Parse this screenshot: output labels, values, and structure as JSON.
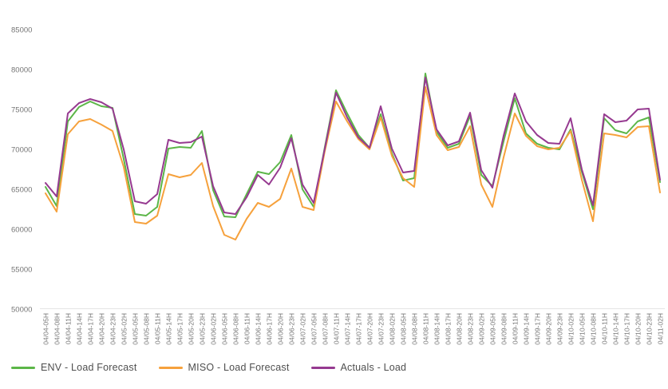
{
  "chart_data": {
    "type": "line",
    "title": "",
    "xlabel": "",
    "ylabel": "",
    "ylim": [
      50000,
      85000
    ],
    "y_ticks": [
      85000,
      80000,
      75000,
      70000,
      65000,
      60000,
      55000,
      50000
    ],
    "grid": "none",
    "legend_position": "bottom-left",
    "axis_text_color": "#757575",
    "axis_line_color": "#e4e4e4",
    "categories": [
      "04/04-05H",
      "04/04-08H",
      "04/04-11H",
      "04/04-14H",
      "04/04-17H",
      "04/04-20H",
      "04/04-23H",
      "04/05-02H",
      "04/05-05H",
      "04/05-08H",
      "04/05-11H",
      "04/05-14H",
      "04/05-17H",
      "04/05-20H",
      "04/05-23H",
      "04/06-02H",
      "04/06-05H",
      "04/06-08H",
      "04/06-11H",
      "04/06-14H",
      "04/06-17H",
      "04/06-20H",
      "04/06-23H",
      "04/07-02H",
      "04/07-05H",
      "04/07-08H",
      "04/07-11H",
      "04/07-14H",
      "04/07-17H",
      "04/07-20H",
      "04/07-23H",
      "04/08-02H",
      "04/08-05H",
      "04/08-08H",
      "04/08-11H",
      "04/08-14H",
      "04/08-17H",
      "04/08-20H",
      "04/08-23H",
      "04/09-02H",
      "04/09-05H",
      "04/09-08H",
      "04/09-11H",
      "04/09-14H",
      "04/09-17H",
      "04/09-20H",
      "04/09-23H",
      "04/10-02H",
      "04/10-05H",
      "04/10-08H",
      "04/10-11H",
      "04/10-14H",
      "04/10-17H",
      "04/10-20H",
      "04/10-23H",
      "04/11-02H"
    ],
    "series": [
      {
        "name": "ENV - Load Forecast",
        "color": "#5cb648",
        "values": [
          65300,
          62900,
          73500,
          75300,
          76000,
          75400,
          75200,
          68800,
          61900,
          61700,
          62800,
          70100,
          70300,
          70200,
          72300,
          64900,
          61600,
          61500,
          64400,
          67200,
          66900,
          68400,
          71800,
          65000,
          62800,
          70300,
          77400,
          74500,
          71800,
          70200,
          74400,
          69500,
          66100,
          66400,
          79500,
          72200,
          70200,
          70700,
          74200,
          66800,
          65400,
          71000,
          76400,
          72000,
          70700,
          70200,
          70000,
          72500,
          67200,
          62500,
          73900,
          72400,
          72000,
          73500,
          74000,
          65900
        ]
      },
      {
        "name": "MISO - Load Forecast",
        "color": "#f6a13c",
        "values": [
          64500,
          62200,
          71900,
          73500,
          73800,
          73100,
          72300,
          67800,
          60900,
          60700,
          61700,
          66900,
          66500,
          66800,
          68300,
          62900,
          59300,
          58700,
          61300,
          63300,
          62800,
          63800,
          67600,
          62800,
          62400,
          69800,
          76000,
          73500,
          71300,
          70000,
          74000,
          69200,
          66400,
          65300,
          77800,
          71800,
          69900,
          70300,
          72900,
          65600,
          62800,
          69000,
          74500,
          71700,
          70400,
          70000,
          70200,
          72300,
          66200,
          61000,
          72000,
          71800,
          71500,
          72800,
          72900,
          64600
        ]
      },
      {
        "name": "Actuals - Load",
        "color": "#963a90",
        "values": [
          65800,
          64100,
          74500,
          75800,
          76300,
          75900,
          75100,
          70000,
          63500,
          63200,
          64400,
          71200,
          70800,
          70900,
          71600,
          65400,
          62100,
          61900,
          64000,
          66800,
          65600,
          67700,
          71400,
          65600,
          63300,
          70100,
          77100,
          74000,
          71500,
          70200,
          75400,
          70100,
          67100,
          67300,
          79000,
          72500,
          70500,
          71000,
          74600,
          67400,
          65200,
          71700,
          77000,
          73500,
          71800,
          70800,
          70700,
          73900,
          67500,
          63000,
          74400,
          73400,
          73600,
          75000,
          75100,
          66200
        ]
      }
    ]
  }
}
